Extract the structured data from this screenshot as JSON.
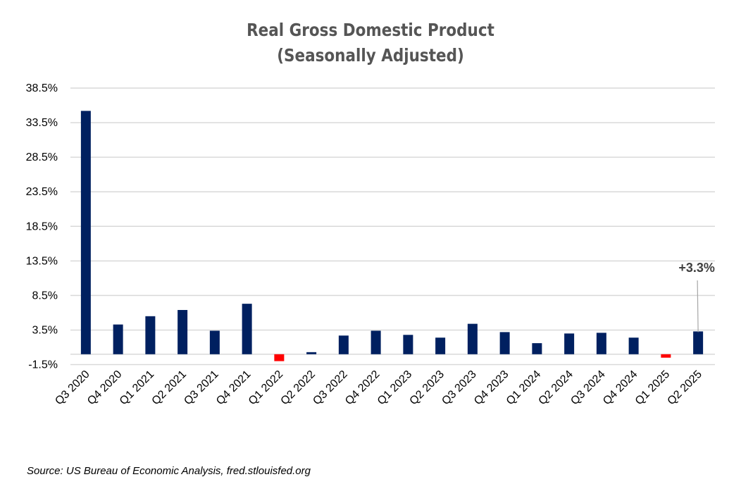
{
  "chart_data": {
    "type": "bar",
    "title": "Real Gross Domestic Product",
    "subtitle": "(Seasonally Adjusted)",
    "xlabel": "",
    "ylabel": "",
    "ylim": [
      -1.5,
      38.5
    ],
    "yticks": [
      -1.5,
      3.5,
      8.5,
      13.5,
      18.5,
      23.5,
      28.5,
      33.5,
      38.5
    ],
    "ytick_labels": [
      "-1.5%",
      "3.5%",
      "8.5%",
      "13.5%",
      "18.5%",
      "23.5%",
      "28.5%",
      "33.5%",
      "38.5%"
    ],
    "grid": true,
    "categories": [
      "Q3 2020",
      "Q4 2020",
      "Q1 2021",
      "Q2 2021",
      "Q3 2021",
      "Q4 2021",
      "Q1 2022",
      "Q2 2022",
      "Q3 2022",
      "Q4 2022",
      "Q1 2023",
      "Q2 2023",
      "Q3 2023",
      "Q4 2023",
      "Q1 2024",
      "Q2 2024",
      "Q3 2024",
      "Q4 2024",
      "Q1 2025",
      "Q2 2025"
    ],
    "values": [
      35.2,
      4.3,
      5.5,
      6.4,
      3.4,
      7.3,
      -1.0,
      0.3,
      2.7,
      3.4,
      2.8,
      2.4,
      4.4,
      3.2,
      1.6,
      3.0,
      3.1,
      2.4,
      -0.5,
      3.3
    ],
    "colors": {
      "positive": "#002060",
      "negative": "#ff0000",
      "grid": "#d9d9d9",
      "title": "#595959"
    },
    "annotation": {
      "category": "Q2 2025",
      "text": "+3.3%"
    },
    "source": "Source: US Bureau of Economic Analysis, fred.stlouisfed.org"
  }
}
